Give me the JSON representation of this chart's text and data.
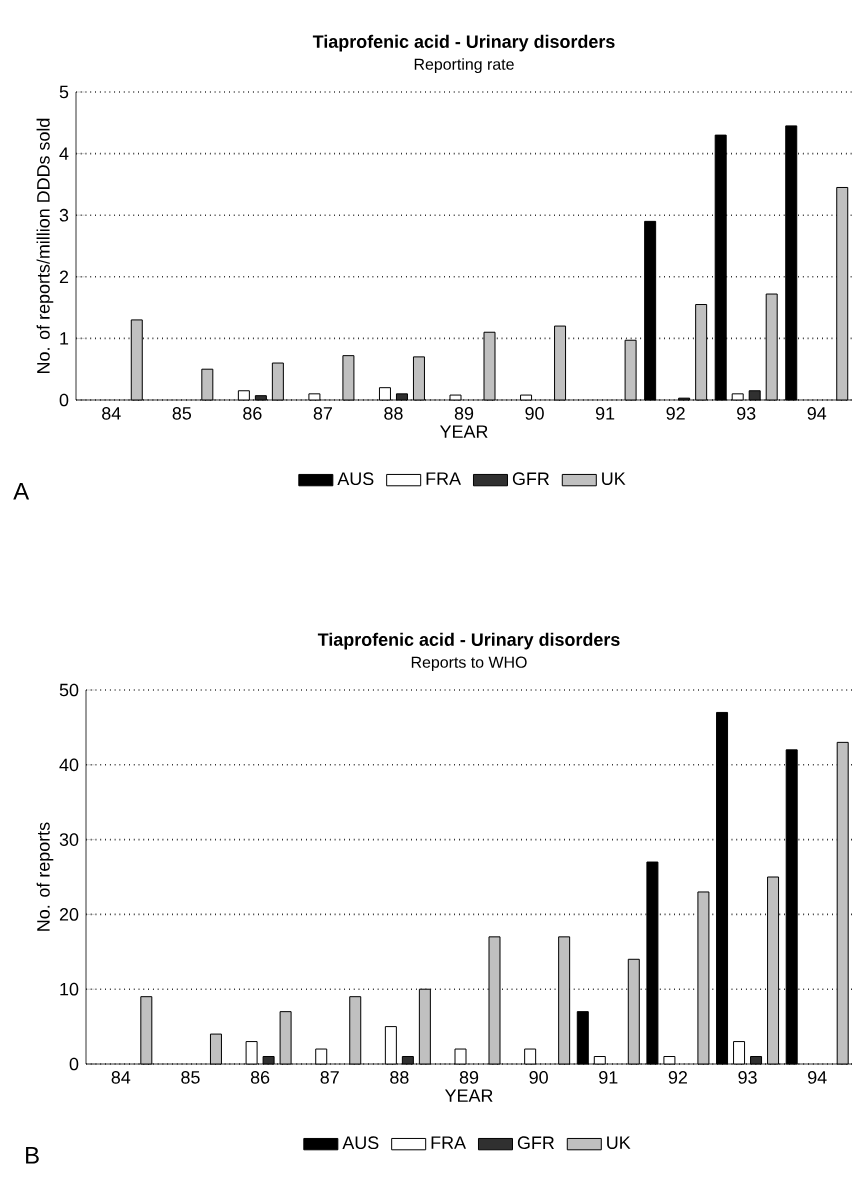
{
  "chart_data": [
    {
      "type": "bar",
      "title": "Tiaprofenic acid - Urinary disorders",
      "subtitle": "Reporting rate",
      "xlabel": "YEAR",
      "ylabel": "No. of reports/million DDDs sold",
      "categories": [
        "84",
        "85",
        "86",
        "87",
        "88",
        "89",
        "90",
        "91",
        "92",
        "93",
        "94"
      ],
      "series": [
        {
          "name": "AUS",
          "color": "#000000",
          "values": [
            null,
            null,
            null,
            null,
            null,
            null,
            null,
            null,
            2.9,
            4.3,
            4.45
          ]
        },
        {
          "name": "FRA",
          "color": "#ffffff",
          "values": [
            null,
            null,
            0.15,
            0.1,
            0.2,
            0.08,
            0.08,
            null,
            null,
            0.1,
            null
          ]
        },
        {
          "name": "GFR",
          "color": "#303030",
          "values": [
            null,
            null,
            0.07,
            null,
            0.1,
            null,
            null,
            null,
            0.03,
            0.15,
            null
          ]
        },
        {
          "name": "UK",
          "color": "#c0c0c0",
          "values": [
            1.3,
            0.5,
            0.6,
            0.72,
            0.7,
            1.1,
            1.2,
            0.97,
            1.55,
            1.72,
            3.45
          ]
        }
      ],
      "ylim": [
        0,
        5
      ],
      "yticks": [
        0,
        1,
        2,
        3,
        4,
        5
      ],
      "grid": "y",
      "legend": "bottom",
      "annotations": [
        "A"
      ]
    },
    {
      "type": "bar",
      "title": "Tiaprofenic acid - Urinary disorders",
      "subtitle": "Reports to WHO",
      "xlabel": "YEAR",
      "ylabel": "No. of reports",
      "categories": [
        "84",
        "85",
        "86",
        "87",
        "88",
        "89",
        "90",
        "91",
        "92",
        "93",
        "94"
      ],
      "series": [
        {
          "name": "AUS",
          "color": "#000000",
          "values": [
            null,
            null,
            null,
            null,
            null,
            null,
            null,
            7,
            27,
            47,
            42
          ]
        },
        {
          "name": "FRA",
          "color": "#ffffff",
          "values": [
            null,
            null,
            3,
            2,
            5,
            2,
            2,
            1,
            1,
            3,
            null
          ]
        },
        {
          "name": "GFR",
          "color": "#303030",
          "values": [
            null,
            null,
            1,
            null,
            1,
            null,
            null,
            null,
            null,
            1,
            null
          ]
        },
        {
          "name": "UK",
          "color": "#c0c0c0",
          "values": [
            9,
            4,
            7,
            9,
            10,
            17,
            17,
            14,
            23,
            25,
            43
          ]
        }
      ],
      "ylim": [
        0,
        50
      ],
      "yticks": [
        0,
        10,
        20,
        30,
        40,
        50
      ],
      "grid": "y",
      "legend": "bottom",
      "annotations": [
        "B"
      ]
    }
  ]
}
